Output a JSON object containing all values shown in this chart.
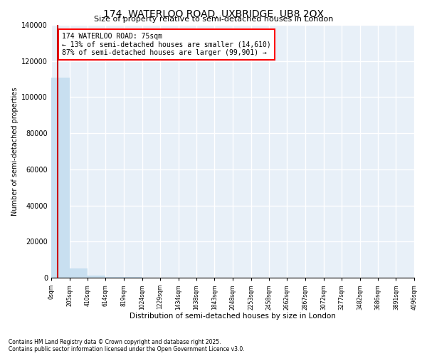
{
  "title": "174, WATERLOO ROAD, UXBRIDGE, UB8 2QX",
  "subtitle": "Size of property relative to semi-detached houses in London",
  "xlabel": "Distribution of semi-detached houses by size in London",
  "ylabel": "Number of semi-detached properties",
  "property_size": 75,
  "annotation_text_line1": "174 WATERLOO ROAD: 75sqm",
  "annotation_text_line2": "← 13% of semi-detached houses are smaller (14,610)",
  "annotation_text_line3": "87% of semi-detached houses are larger (99,901) →",
  "bar_color": "#c8dff0",
  "highlight_color": "#cc0000",
  "background_color": "#ffffff",
  "grid_color": "#c8dff0",
  "ylim": [
    0,
    140000
  ],
  "footnote": "Contains HM Land Registry data © Crown copyright and database right 2025.\nContains public sector information licensed under the Open Government Licence v3.0.",
  "bin_edges": [
    0,
    205,
    410,
    614,
    819,
    1024,
    1229,
    1434,
    1638,
    1843,
    2048,
    2253,
    2458,
    2662,
    2867,
    3072,
    3277,
    3482,
    3686,
    3891,
    4096
  ],
  "bin_counts": [
    111000,
    5000,
    1200,
    400,
    200,
    100,
    60,
    40,
    25,
    15,
    10,
    8,
    6,
    5,
    4,
    3,
    3,
    2,
    2,
    1
  ]
}
